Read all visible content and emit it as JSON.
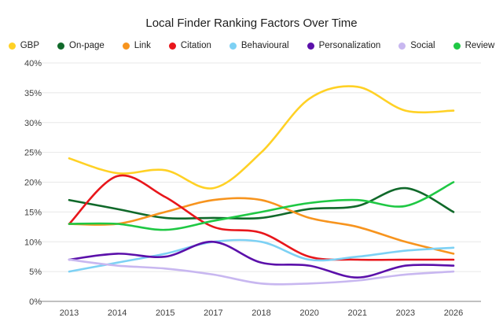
{
  "chart_data": {
    "type": "line",
    "title": "Local Finder Ranking Factors Over Time",
    "x_labels": [
      "2013",
      "2014",
      "2015",
      "2017",
      "2018",
      "2020",
      "2021",
      "2023",
      "2026"
    ],
    "y_tick_labels": [
      "40%",
      "35%",
      "30%",
      "25%",
      "20%",
      "15%",
      "10%",
      "5%",
      "0%"
    ],
    "ylim": [
      0,
      40
    ],
    "y_step": 5,
    "grid": true,
    "legend_position": "top-center",
    "line_style": "smooth",
    "colors": {
      "gridline": "#e8e8e8",
      "axis_line": "#ababab",
      "tick_text": "#3f3f3f",
      "title_text": "#1d1d1d",
      "legend_text": "#222222",
      "background": "#ffffff"
    },
    "series": [
      {
        "name": "GBP",
        "color": "#FFD125",
        "values": [
          24,
          21.5,
          22,
          19,
          25,
          34,
          36,
          32,
          32
        ]
      },
      {
        "name": "On-page",
        "color": "#10692A",
        "values": [
          17,
          15.5,
          14,
          14,
          14,
          15.5,
          16,
          19,
          15
        ]
      },
      {
        "name": "Link",
        "color": "#F7941E",
        "values": [
          13,
          13,
          15,
          17,
          17,
          14,
          12.5,
          10,
          8
        ]
      },
      {
        "name": "Citation",
        "color": "#E8161B",
        "values": [
          13,
          21,
          17.5,
          12.5,
          11.5,
          7.5,
          7,
          7,
          7
        ]
      },
      {
        "name": "Behavioural",
        "color": "#7DD1F4",
        "values": [
          5,
          6.5,
          8,
          10,
          10,
          7,
          7.5,
          8.5,
          9
        ]
      },
      {
        "name": "Personalization",
        "color": "#5B10AA",
        "values": [
          7,
          8,
          7.5,
          10,
          6.5,
          6,
          4,
          6,
          6
        ]
      },
      {
        "name": "Social",
        "color": "#C8B7F0",
        "values": [
          7,
          6,
          5.5,
          4.5,
          3,
          3,
          3.5,
          4.5,
          5
        ]
      },
      {
        "name": "Review",
        "color": "#1FC844",
        "values": [
          13,
          13,
          12,
          13.5,
          15,
          16.5,
          17,
          16,
          20
        ]
      }
    ]
  }
}
